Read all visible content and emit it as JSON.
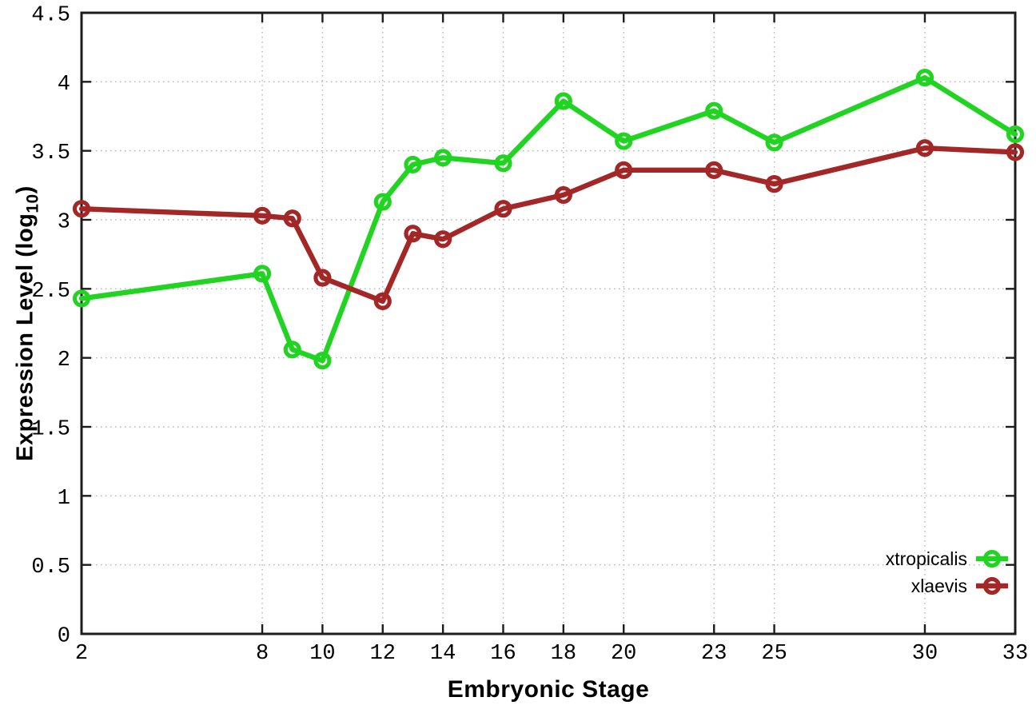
{
  "chart_data": {
    "type": "line",
    "title": "",
    "xlabel": "Embryonic Stage",
    "ylabel_parts": {
      "base": "Expression Level (log",
      "sub": "10",
      "close": ")"
    },
    "xlim": [
      2,
      33
    ],
    "ylim": [
      0,
      4.5
    ],
    "grid": true,
    "legend_position": "bottom-right",
    "x": [
      2,
      8,
      9,
      10,
      12,
      13,
      14,
      16,
      18,
      20,
      23,
      25,
      30,
      33
    ],
    "xticks": [
      2,
      8,
      10,
      12,
      14,
      16,
      18,
      20,
      23,
      25,
      30,
      33
    ],
    "xtick_labels": [
      "2",
      "8",
      "10",
      "12",
      "14",
      "16",
      "18",
      "20",
      "23",
      "25",
      "30",
      "33"
    ],
    "yticks": [
      0,
      0.5,
      1,
      1.5,
      2,
      2.5,
      3,
      3.5,
      4,
      4.5
    ],
    "ytick_labels": [
      "0",
      "0.5",
      "1",
      "1.5",
      "2",
      "2.5",
      "3",
      "3.5",
      "4",
      "4.5"
    ],
    "series": [
      {
        "name": "xtropicalis",
        "color": "#21d421",
        "values": [
          2.43,
          2.61,
          2.06,
          1.98,
          3.13,
          3.4,
          3.45,
          3.41,
          3.86,
          3.57,
          3.79,
          3.56,
          4.03,
          3.62
        ]
      },
      {
        "name": "xlaevis",
        "color": "#a32727",
        "values": [
          3.08,
          3.03,
          3.01,
          2.58,
          2.41,
          2.9,
          2.86,
          3.08,
          3.18,
          3.36,
          3.36,
          3.26,
          3.52,
          3.49
        ]
      }
    ],
    "colors": {
      "background": "#ffffff",
      "border": "#1c1c1c",
      "grid": "#b4b4b4",
      "tick_text": "#000000"
    }
  }
}
